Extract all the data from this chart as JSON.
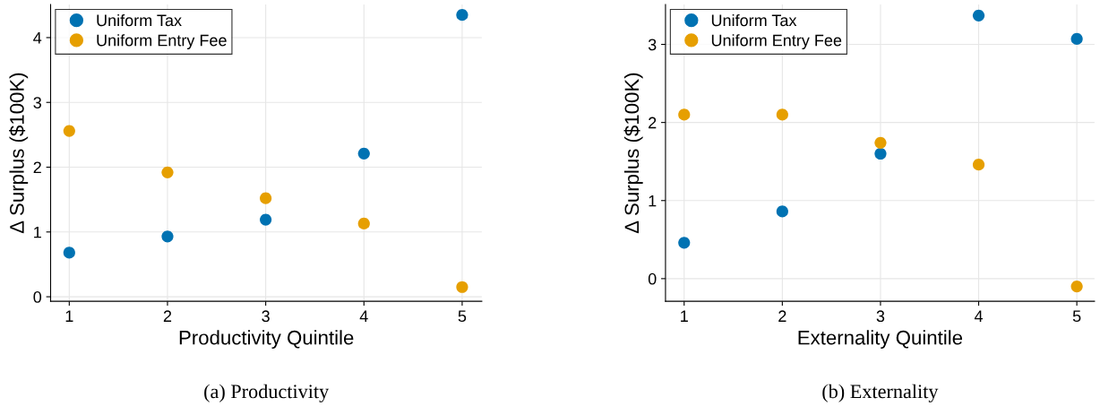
{
  "chart_data": [
    {
      "type": "scatter",
      "xlabel": "Productivity Quintile",
      "ylabel": "Δ Surplus ($100K)",
      "annotations": [
        "(a) Productivity"
      ],
      "x": [
        1,
        2,
        3,
        4,
        5
      ],
      "xlim": [
        0.81,
        5.2
      ],
      "xticks": [
        1,
        2,
        3,
        4,
        5
      ],
      "ylim": [
        -0.07,
        4.51
      ],
      "yticks": [
        0,
        1,
        2,
        3,
        4
      ],
      "grid": true,
      "legend": "top left",
      "marker": "circle",
      "series": [
        {
          "name": "Uniform Tax",
          "color": "#0072b2",
          "values": [
            0.68,
            0.93,
            1.19,
            2.21,
            4.35
          ]
        },
        {
          "name": "Uniform Entry Fee",
          "color": "#e69f00",
          "values": [
            2.56,
            1.92,
            1.52,
            1.13,
            0.15
          ]
        }
      ]
    },
    {
      "type": "scatter",
      "xlabel": "Externality Quintile",
      "ylabel": "Δ Surplus ($100K)",
      "annotations": [
        "(b) Externality"
      ],
      "x": [
        1,
        2,
        3,
        4,
        5
      ],
      "xlim": [
        0.81,
        5.18
      ],
      "xticks": [
        1,
        2,
        3,
        4,
        5
      ],
      "ylim": [
        -0.29,
        3.51
      ],
      "yticks": [
        0,
        1,
        2,
        3
      ],
      "grid": true,
      "legend": "top left",
      "marker": "circle",
      "series": [
        {
          "name": "Uniform Tax",
          "color": "#0072b2",
          "values": [
            0.46,
            0.86,
            1.6,
            3.37,
            3.07
          ]
        },
        {
          "name": "Uniform Entry Fee",
          "color": "#e69f00",
          "values": [
            2.1,
            2.1,
            1.74,
            1.46,
            -0.1
          ]
        }
      ]
    }
  ]
}
